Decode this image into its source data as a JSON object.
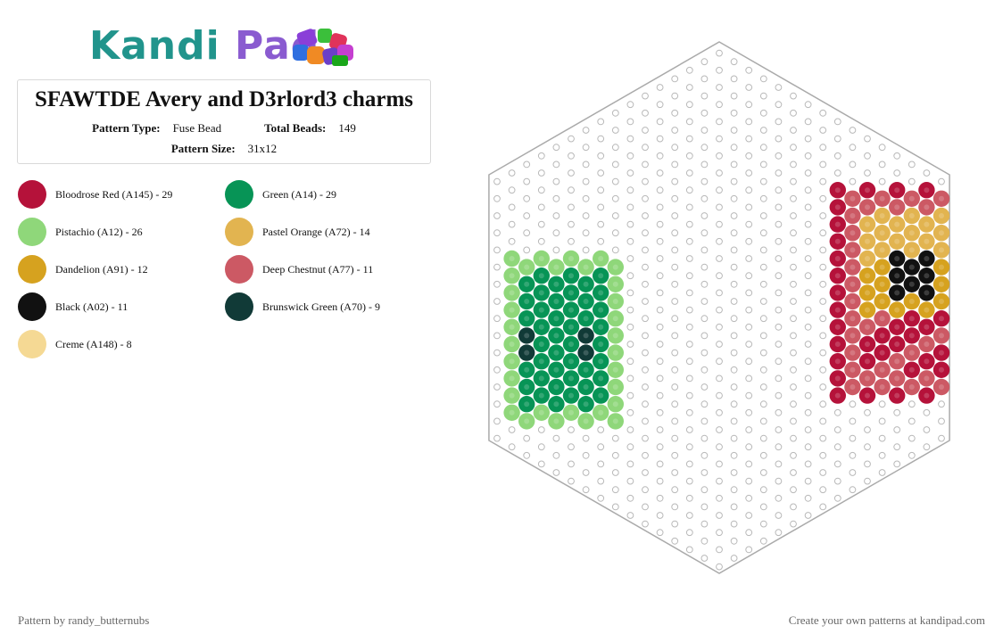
{
  "logo": {
    "part1": "Kandi",
    "part2": "Pad"
  },
  "pattern": {
    "title": "SFAWTDE Avery and D3rlord3 charms",
    "type_label": "Pattern Type:",
    "type_value": "Fuse Bead",
    "beads_label": "Total Beads:",
    "beads_value": "149",
    "size_label": "Pattern Size:",
    "size_value": "31x12"
  },
  "legend": [
    {
      "label": "Bloodrose Red (A145) - 29",
      "color": "#b5123a"
    },
    {
      "label": "Green (A14) - 29",
      "color": "#079456"
    },
    {
      "label": "Pistachio (A12) - 26",
      "color": "#8fd77a"
    },
    {
      "label": "Pastel Orange (A72) - 14",
      "color": "#e2b450"
    },
    {
      "label": "Dandelion (A91) - 12",
      "color": "#d6a21f"
    },
    {
      "label": "Deep Chestnut (A77) - 11",
      "color": "#cc5964"
    },
    {
      "label": "Black (A02) - 11",
      "color": "#111111"
    },
    {
      "label": "Brunswick Green (A70) - 9",
      "color": "#113a37"
    },
    {
      "label": "Creme (A148) - 8",
      "color": "#f5d994"
    }
  ],
  "footer": {
    "left": "Pattern by randy_butternubs",
    "right": "Create your own patterns at kandipad.com"
  }
}
